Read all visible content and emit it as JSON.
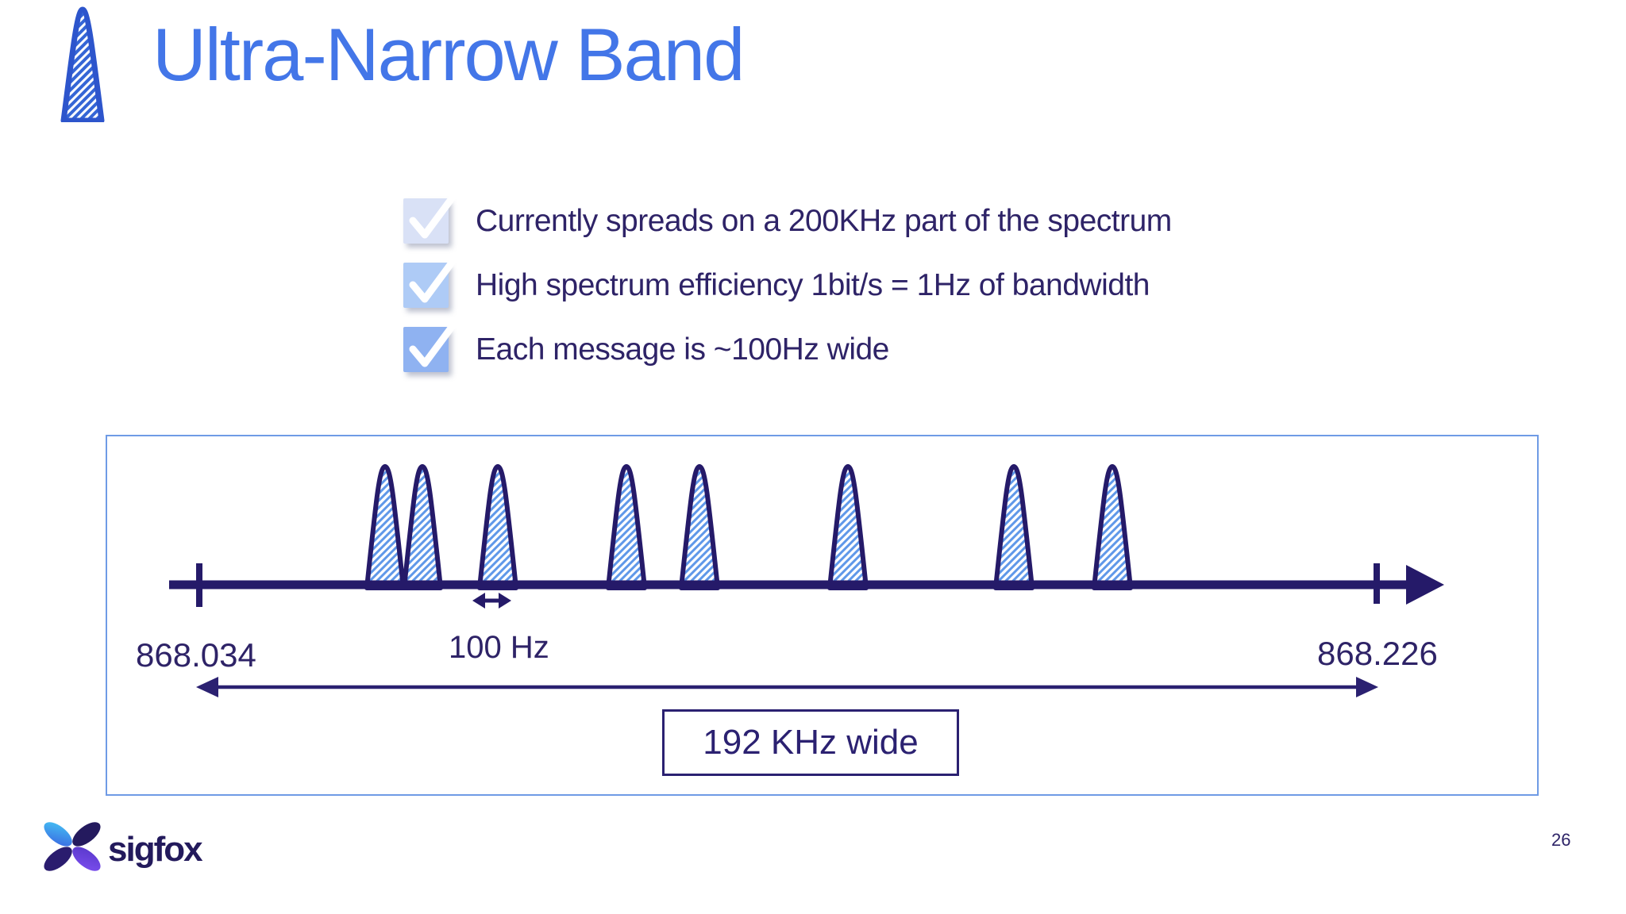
{
  "slide": {
    "title": "Ultra-Narrow Band",
    "page_number": "26"
  },
  "checklist": {
    "items": [
      {
        "label": "Currently spreads on a 200KHz part of the spectrum",
        "checkbox_color": "#d9e1f6"
      },
      {
        "label": "High spectrum efficiency 1bit/s = 1Hz of bandwidth",
        "checkbox_color": "#aecbf6"
      },
      {
        "label": "Each message is ~100Hz wide",
        "checkbox_color": "#8fb2f1"
      }
    ]
  },
  "diagram": {
    "start_frequency": "868.034",
    "end_frequency": "868.226",
    "message_width": "100 Hz",
    "band_width": "192 KHz wide",
    "peak_centers": [
      350,
      397,
      492,
      654,
      746,
      933,
      1142,
      1266
    ]
  },
  "footer": {
    "brand": "sigfox",
    "page_number": "26"
  },
  "colors": {
    "title_blue": "#4376e8",
    "outline_navy": "#251a69",
    "text_indigo": "#2e2367",
    "hatch_blue": "#5f98e9",
    "diagram_border_blue": "#6f9be5",
    "logo_cyan": "#45c6f5",
    "logo_purple": "#7d4ff0"
  }
}
